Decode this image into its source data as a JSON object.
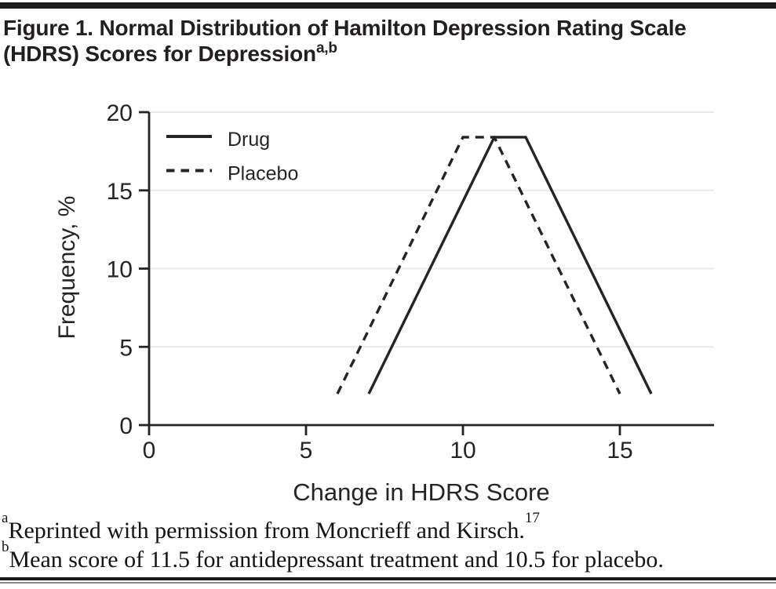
{
  "header": {
    "title": "Figure 1. Normal Distribution of Hamilton Depression Rating Scale (HDRS) Scores for Depression",
    "title_superscript": "a,b"
  },
  "chart_data": {
    "type": "line",
    "title": "Normal Distribution of Hamilton Depression Rating Scale (HDRS) Scores for Depression",
    "xlabel": "Change in HDRS Score",
    "ylabel": "Frequency, %",
    "xlim": [
      0,
      18
    ],
    "ylim": [
      0,
      20
    ],
    "xticks": [
      0,
      5,
      10,
      15
    ],
    "yticks": [
      0,
      5,
      10,
      15,
      20
    ],
    "grid": "horizontal-light",
    "legend": {
      "position": "top-left-inside",
      "entries": [
        "Drug",
        "Placebo"
      ]
    },
    "series": [
      {
        "name": "Drug",
        "line_style": "solid",
        "points": [
          [
            7,
            2
          ],
          [
            11,
            18.4
          ],
          [
            12,
            18.4
          ],
          [
            16,
            2
          ]
        ]
      },
      {
        "name": "Placebo",
        "line_style": "dashed",
        "points": [
          [
            6,
            2
          ],
          [
            10,
            18.4
          ],
          [
            11,
            18.4
          ],
          [
            15,
            2
          ]
        ]
      }
    ],
    "colors": {
      "line": "#262324",
      "axis": "#262324",
      "grid": "#e9e9e9",
      "text": "#262324"
    }
  },
  "footnotes": [
    {
      "marker": "a",
      "text": "Reprinted with permission from Moncrieff and Kirsch.",
      "reference": "17"
    },
    {
      "marker": "b",
      "text": "Mean score of 11.5 for antidepressant treatment and 10.5 for placebo.",
      "reference": ""
    }
  ]
}
